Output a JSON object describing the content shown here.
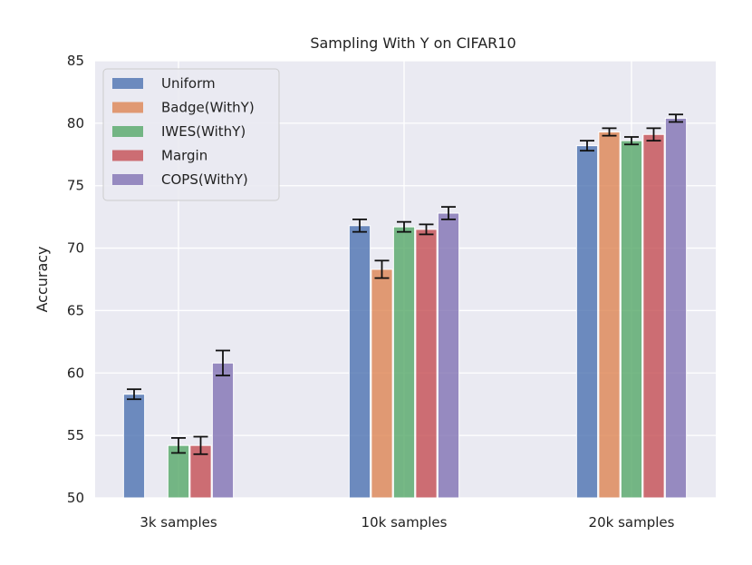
{
  "chart_data": {
    "type": "bar",
    "title": "Sampling With Y on CIFAR10",
    "xlabel": "",
    "ylabel": "Accuracy",
    "ylim": [
      50,
      85
    ],
    "yticks": [
      50,
      55,
      60,
      65,
      70,
      75,
      80,
      85
    ],
    "categories": [
      "3k samples",
      "10k samples",
      "20k samples"
    ],
    "grid": true,
    "legend_position": "top-left",
    "series": [
      {
        "name": "Uniform",
        "color": "#4c72b0",
        "values": [
          58.3,
          71.8,
          78.2
        ],
        "errors": [
          0.4,
          0.5,
          0.4
        ]
      },
      {
        "name": "Badge(WithY)",
        "color": "#dd8452",
        "values": [
          null,
          68.3,
          79.3
        ],
        "errors": [
          null,
          0.7,
          0.3
        ]
      },
      {
        "name": "IWES(WithY)",
        "color": "#55a868",
        "values": [
          54.2,
          71.7,
          78.6
        ],
        "errors": [
          0.6,
          0.4,
          0.3
        ]
      },
      {
        "name": "Margin",
        "color": "#c44e52",
        "values": [
          54.2,
          71.5,
          79.1
        ],
        "errors": [
          0.7,
          0.4,
          0.5
        ]
      },
      {
        "name": "COPS(WithY)",
        "color": "#8172b3",
        "values": [
          60.8,
          72.8,
          80.4
        ],
        "errors": [
          1.0,
          0.5,
          0.3
        ]
      }
    ]
  }
}
